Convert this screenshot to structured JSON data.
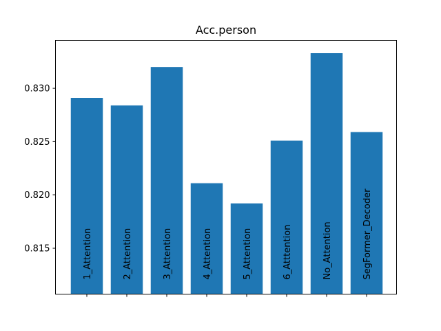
{
  "chart_data": {
    "type": "bar",
    "title": "Acc.person",
    "xlabel": "",
    "ylabel": "",
    "categories": [
      "1_Attention",
      "2_Attention",
      "3_Attention",
      "4_Attention",
      "5_Attention",
      "6_Atttention",
      "No_Attention",
      "SegFormer_Decoder"
    ],
    "values": [
      0.8291,
      0.8284,
      0.832,
      0.8211,
      0.8192,
      0.8251,
      0.8333,
      0.8259
    ],
    "ylim": [
      0.8107,
      0.8345
    ],
    "yticks": [
      0.815,
      0.82,
      0.825,
      0.83
    ],
    "ytick_labels": [
      "0.815",
      "0.820",
      "0.825",
      "0.830"
    ],
    "bar_color": "#1f77b4",
    "grid": false,
    "legend": "none",
    "category_labels_inside_bars": true
  }
}
